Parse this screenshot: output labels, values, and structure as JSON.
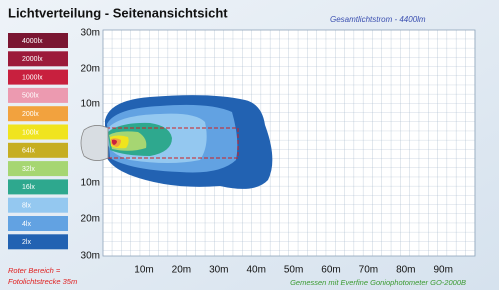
{
  "header": {
    "title": "Lichtverteilung - Seitenansichtsicht",
    "total_flux": "Gesamtlichtstrom - 4400lm"
  },
  "legend": [
    {
      "label": "4000lx",
      "color": "#7a1632"
    },
    {
      "label": "2000lx",
      "color": "#9c1a3a"
    },
    {
      "label": "1000lx",
      "color": "#c8203e"
    },
    {
      "label": "500lx",
      "color": "#ec9ab0"
    },
    {
      "label": "200lx",
      "color": "#f2a23e"
    },
    {
      "label": "100lx",
      "color": "#f0e41e"
    },
    {
      "label": "64lx",
      "color": "#c6ae22"
    },
    {
      "label": "32lx",
      "color": "#a6d672"
    },
    {
      "label": "16lx",
      "color": "#2ea88e"
    },
    {
      "label": "8lx",
      "color": "#94c8f0"
    },
    {
      "label": "4lx",
      "color": "#62a2e2"
    },
    {
      "label": "2lx",
      "color": "#2262b2"
    }
  ],
  "y_axis_labels": [
    "30m",
    "20m",
    "10m",
    "10m",
    "20m",
    "30m"
  ],
  "x_axis_labels": [
    "10m",
    "20m",
    "30m",
    "40m",
    "50m",
    "60m",
    "70m",
    "80m",
    "90m"
  ],
  "footer": {
    "note_line1": "Roter Bereich =",
    "note_line2": "Fotolichtstrecke 35m",
    "measurement": "Gemessen mit Everfine Goniophotometer GO-2000B"
  }
}
